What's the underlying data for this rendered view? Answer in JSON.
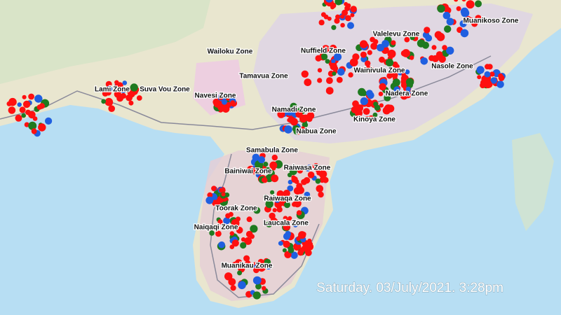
{
  "zones": [
    "Lami Zone",
    "Suva Vou Zone",
    "Navesi Zone",
    "Wailoku Zone",
    "Tamavua Zone",
    "Nuffield Zone",
    "Valelevu Zone",
    "Muanikoso Zone",
    "Wainivula Zone",
    "Nasole Zone",
    "Nadera Zone",
    "Namadi Zone",
    "Nabua Zone",
    "Kinoya Zone",
    "Samabula Zone",
    "Bainiwai Zone",
    "Raiwasa Zone",
    "Raiwaqa Zone",
    "Toorak Zone",
    "Laucala Zone",
    "Naiqaqi Zone",
    "Muanikau Zone"
  ],
  "timestamp": "Saturday. 03/July/2021. 3:28pm"
}
